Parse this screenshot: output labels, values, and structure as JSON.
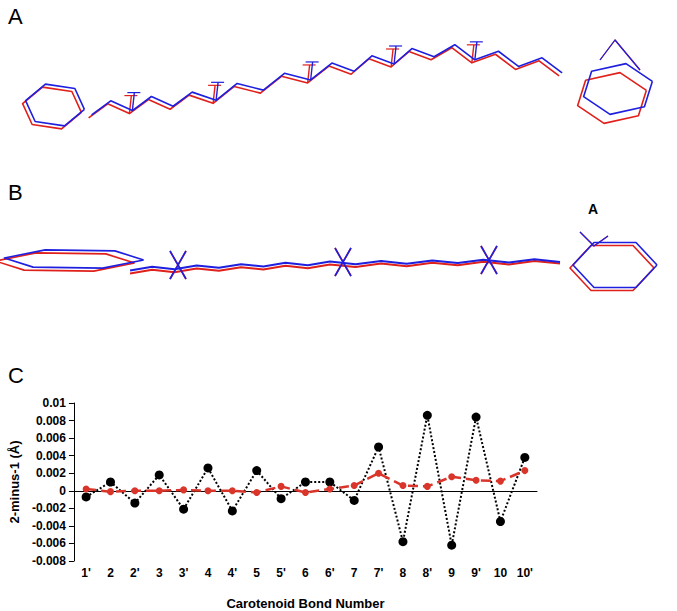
{
  "panel_labels": [
    "A",
    "B",
    "C"
  ],
  "panel_B_annotation": "A",
  "chart_data": {
    "type": "line",
    "x_label": "Carotenoid Bond Number",
    "y_label": "2-minus-1 (Å)",
    "categories": [
      "1'",
      "2",
      "2'",
      "3",
      "3'",
      "4",
      "4'",
      "5",
      "5'",
      "6",
      "6'",
      "7",
      "7'",
      "8",
      "8'",
      "9",
      "9'",
      "10",
      "10'"
    ],
    "series": [
      {
        "color": "#000000",
        "marker": "circle",
        "line_style": "dotted",
        "values": [
          -0.0007,
          0.001,
          -0.0014,
          0.0018,
          -0.0021,
          0.0026,
          -0.0023,
          0.0023,
          -0.0009,
          0.001,
          0.001,
          -0.0011,
          0.005,
          -0.0058,
          0.0086,
          -0.0062,
          0.0084,
          -0.0035,
          0.0038
        ]
      },
      {
        "color": "#d9352b",
        "marker": "circle",
        "line_style": "dashed",
        "values": [
          0.0002,
          -0.0001,
          0,
          0,
          0.0001,
          0,
          0,
          -0.0002,
          0.0005,
          -0.0002,
          0.0002,
          0.0006,
          0.002,
          0.0006,
          0.0005,
          0.0016,
          0.0012,
          0.0011,
          0.0023
        ]
      }
    ],
    "ylim": [
      -0.008,
      0.01
    ],
    "yticks": [
      -0.008,
      -0.006,
      -0.004,
      -0.002,
      0,
      0.002,
      0.004,
      0.006,
      0.008,
      0.01
    ],
    "grid": false
  }
}
